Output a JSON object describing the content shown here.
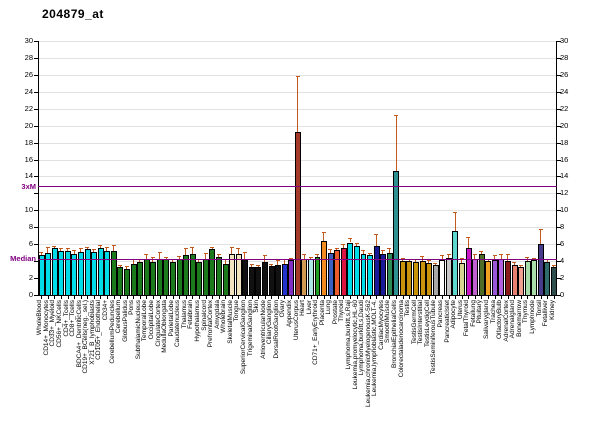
{
  "title": "204879_at",
  "chart_data": {
    "type": "bar",
    "title": "204879_at",
    "ylim": [
      0,
      30
    ],
    "yticks": [
      0,
      2,
      4,
      6,
      8,
      10,
      12,
      14,
      16,
      18,
      20,
      22,
      24,
      26,
      28,
      30
    ],
    "left_axis_labels_replaced_by_lines": [
      4,
      12
    ],
    "grid": true,
    "median_label": "Median",
    "median_value": 4.2,
    "threexm_label": "3xM",
    "threexm_value": 12.8,
    "refline_color": "#800080",
    "error_bar_color": "#C25A1E",
    "samples": [
      {
        "label": "WholeBlood",
        "value": 4.7,
        "err": 5.1,
        "color": "#00DCE8"
      },
      {
        "label": "CD14+_Monocytes",
        "value": 5.0,
        "err": 5.7,
        "color": "#00DCE8"
      },
      {
        "label": "CD33+_Myeloid",
        "value": 5.5,
        "err": 5.8,
        "color": "#00DCE8"
      },
      {
        "label": "CD56+_NKCells",
        "value": 5.2,
        "err": 5.5,
        "color": "#00DCE8"
      },
      {
        "label": "CD4+_Tcells",
        "value": 5.2,
        "err": 5.5,
        "color": "#00DCE8"
      },
      {
        "label": "CD8+_Tcells",
        "value": 4.9,
        "err": 5.3,
        "color": "#00DCE8"
      },
      {
        "label": "BDCA4+_DentriticCells",
        "value": 5.1,
        "err": 5.5,
        "color": "#00DCE8"
      },
      {
        "label": "CD19+_BCells(neg._sel.)",
        "value": 5.4,
        "err": 5.7,
        "color": "#00DCE8"
      },
      {
        "label": "X721_B_lymphoblasts",
        "value": 5.1,
        "err": 5.4,
        "color": "#00DCE8"
      },
      {
        "label": "CD105+_Endothelial",
        "value": 5.6,
        "err": 5.9,
        "color": "#00DCE8"
      },
      {
        "label": "CD34+",
        "value": 5.2,
        "err": 5.7,
        "color": "#00DCE8"
      },
      {
        "label": "CerebellumPeduncles",
        "value": 5.2,
        "err": 5.9,
        "color": "#1B7A1B"
      },
      {
        "label": "Cerebellum",
        "value": 3.3,
        "err": 3.6,
        "color": "#1B7A1B"
      },
      {
        "label": "GlobusPalidus",
        "value": 3.1,
        "err": 3.4,
        "color": "#1B7A1B"
      },
      {
        "label": "Pons",
        "value": 3.7,
        "err": 4.3,
        "color": "#1B7A1B"
      },
      {
        "label": "SubthalamicNucleus",
        "value": 3.9,
        "err": 4.2,
        "color": "#1B7A1B"
      },
      {
        "label": "TemporalLobe",
        "value": 4.2,
        "err": 4.8,
        "color": "#1B7A1B"
      },
      {
        "label": "OccipitalLobe",
        "value": 3.9,
        "err": 4.5,
        "color": "#1B7A1B"
      },
      {
        "label": "CingulateCortex",
        "value": 4.3,
        "err": 5.1,
        "color": "#1B7A1B"
      },
      {
        "label": "MedullaOblongata",
        "value": 4.2,
        "err": 4.5,
        "color": "#1B7A1B"
      },
      {
        "label": "ParietalLobe",
        "value": 3.9,
        "err": 4.2,
        "color": "#1B7A1B"
      },
      {
        "label": "Caudatenucleus",
        "value": 4.2,
        "err": 4.6,
        "color": "#1B7A1B"
      },
      {
        "label": "Thalamus",
        "value": 4.7,
        "err": 5.5,
        "color": "#1B7A1B"
      },
      {
        "label": "Fetalbrain",
        "value": 4.9,
        "err": 5.7,
        "color": "#1B7A1B"
      },
      {
        "label": "Hypothalamus",
        "value": 3.9,
        "err": 4.3,
        "color": "#1B7A1B"
      },
      {
        "label": "Spinalcord",
        "value": 4.3,
        "err": 5.0,
        "color": "#1B7A1B"
      },
      {
        "label": "PrefrontalCortex",
        "value": 5.4,
        "err": 5.7,
        "color": "#1B7A1B"
      },
      {
        "label": "Amygdala",
        "value": 4.5,
        "err": 4.8,
        "color": "#1B7A1B"
      },
      {
        "label": "Wholebrain",
        "value": 3.7,
        "err": 4.3,
        "color": "#1B7A1B"
      },
      {
        "label": "SkeletalMuscle",
        "value": 4.9,
        "err": 5.7,
        "color": "#F2E4C0"
      },
      {
        "label": "Tongue",
        "value": 4.9,
        "err": 5.5,
        "color": "#F2E4C0"
      },
      {
        "label": "SuperiorCervicalGanglion",
        "value": 4.3,
        "err": 5.1,
        "color": "#111111"
      },
      {
        "label": "TrigeminalGanglion",
        "value": 3.3,
        "err": 3.7,
        "color": "#111111"
      },
      {
        "label": "Skin",
        "value": 3.3,
        "err": 3.6,
        "color": "#111111"
      },
      {
        "label": "AtrioventricularNode",
        "value": 3.9,
        "err": 4.7,
        "color": "#111111"
      },
      {
        "label": "CiliaryGanglion",
        "value": 3.4,
        "err": 3.7,
        "color": "#111111"
      },
      {
        "label": "DorsalRootGanglion",
        "value": 3.5,
        "err": 4.1,
        "color": "#111111"
      },
      {
        "label": "Ovary",
        "value": 3.7,
        "err": 4.3,
        "color": "#2233CC"
      },
      {
        "label": "Appendix",
        "value": 4.1,
        "err": 4.4,
        "color": "#7F2FC4"
      },
      {
        "label": "UterusCorpus",
        "value": 19.3,
        "err": 25.9,
        "color": "#A63A2A"
      },
      {
        "label": "Heart",
        "value": 4.3,
        "err": 4.9,
        "color": "#D09A50"
      },
      {
        "label": "Liver",
        "value": 4.2,
        "err": 4.5,
        "color": "#B0E8E8"
      },
      {
        "label": "CD71+_EarlyErythroid",
        "value": 4.5,
        "err": 4.8,
        "color": "#22A022"
      },
      {
        "label": "Placenta",
        "value": 6.4,
        "err": 7.5,
        "color": "#F28B1F"
      },
      {
        "label": "Lung",
        "value": 5.0,
        "err": 5.4,
        "color": "#3B5FC0"
      },
      {
        "label": "Prostate",
        "value": 5.3,
        "err": 5.6,
        "color": "#ED5B2B"
      },
      {
        "label": "Thyroid",
        "value": 5.6,
        "err": 6.0,
        "color": "#DC1440"
      },
      {
        "label": "Lymphoma,burkitt,s,Raji",
        "value": 6.2,
        "err": 6.7,
        "color": "#00DCE8"
      },
      {
        "label": "Leukemia,promyelocytic,HL-60",
        "value": 5.8,
        "err": 6.1,
        "color": "#00DCE8"
      },
      {
        "label": "Lymphoma,burkitt,s,Daudi",
        "value": 4.9,
        "err": 5.3,
        "color": "#00DCE8"
      },
      {
        "label": "Leukemia,chronicMyelogenousK-562",
        "value": 4.7,
        "err": 5.0,
        "color": "#00DCE8"
      },
      {
        "label": "Leukemia,lymphoblastic,MOLT-4.",
        "value": 5.8,
        "err": 7.2,
        "color": "#1A1A99"
      },
      {
        "label": "CardiacMyocytes",
        "value": 4.9,
        "err": 5.3,
        "color": "#1A1A99"
      },
      {
        "label": "SmoothMuscle",
        "value": 5.0,
        "err": 5.5,
        "color": "#2E8B57"
      },
      {
        "label": "BronchialEpithelialCells",
        "value": 14.6,
        "err": 21.3,
        "color": "#2E9090"
      },
      {
        "label": "Colorectaladenocarcinoma",
        "value": 4.0,
        "err": 4.4,
        "color": "#C8920B"
      },
      {
        "label": "Testis",
        "value": 4.0,
        "err": 4.3,
        "color": "#C8920B"
      },
      {
        "label": "TestisGermCell",
        "value": 3.9,
        "err": 4.2,
        "color": "#C8920B"
      },
      {
        "label": "TestisInterstitial",
        "value": 4.0,
        "err": 4.6,
        "color": "#C8920B"
      },
      {
        "label": "TestisLeydigCell",
        "value": 3.8,
        "err": 4.1,
        "color": "#C8920B"
      },
      {
        "label": "TestisSeminiferousTubule",
        "value": 3.5,
        "err": 3.8,
        "color": "#A8A8A8"
      },
      {
        "label": "Pancreas",
        "value": 4.1,
        "err": 4.7,
        "color": "#FFFFFF"
      },
      {
        "label": "PancreaticIslet",
        "value": 4.4,
        "err": 4.9,
        "color": "#C8C8C8"
      },
      {
        "label": "Adipocyte",
        "value": 7.6,
        "err": 9.8,
        "color": "#5FD8D0"
      },
      {
        "label": "Uterus",
        "value": 3.8,
        "err": 4.4,
        "color": "#D6D68E"
      },
      {
        "label": "FetalThyroid",
        "value": 5.5,
        "err": 6.9,
        "color": "#C818C8"
      },
      {
        "label": "Fetallung",
        "value": 4.2,
        "err": 4.8,
        "color": "#C060D0"
      },
      {
        "label": "Pituitary",
        "value": 4.9,
        "err": 5.2,
        "color": "#4F6B28"
      },
      {
        "label": "Salivarygland",
        "value": 4.0,
        "err": 4.3,
        "color": "#F0A020"
      },
      {
        "label": "Trachea",
        "value": 4.1,
        "err": 4.7,
        "color": "#9858D8"
      },
      {
        "label": "OlfactoryBulb",
        "value": 4.2,
        "err": 4.8,
        "color": "#B060E0"
      },
      {
        "label": "AdrenalCortex",
        "value": 4.0,
        "err": 4.9,
        "color": "#8B1A1A"
      },
      {
        "label": "Adrenalgland",
        "value": 3.6,
        "err": 3.9,
        "color": "#E88070"
      },
      {
        "label": "Bonemarrow",
        "value": 3.3,
        "err": 3.6,
        "color": "#F0A090"
      },
      {
        "label": "Thymus",
        "value": 4.0,
        "err": 4.5,
        "color": "#A8DCA8"
      },
      {
        "label": "Lymphnode",
        "value": 4.1,
        "err": 4.4,
        "color": "#A8DCA8"
      },
      {
        "label": "Tonsil",
        "value": 6.0,
        "err": 7.8,
        "color": "#473C8B"
      },
      {
        "label": "Fetalliver",
        "value": 3.9,
        "err": 4.2,
        "color": "#2F6B6B"
      },
      {
        "label": "Kidney",
        "value": 3.3,
        "err": 3.5,
        "color": "#2F4F4F"
      }
    ]
  }
}
